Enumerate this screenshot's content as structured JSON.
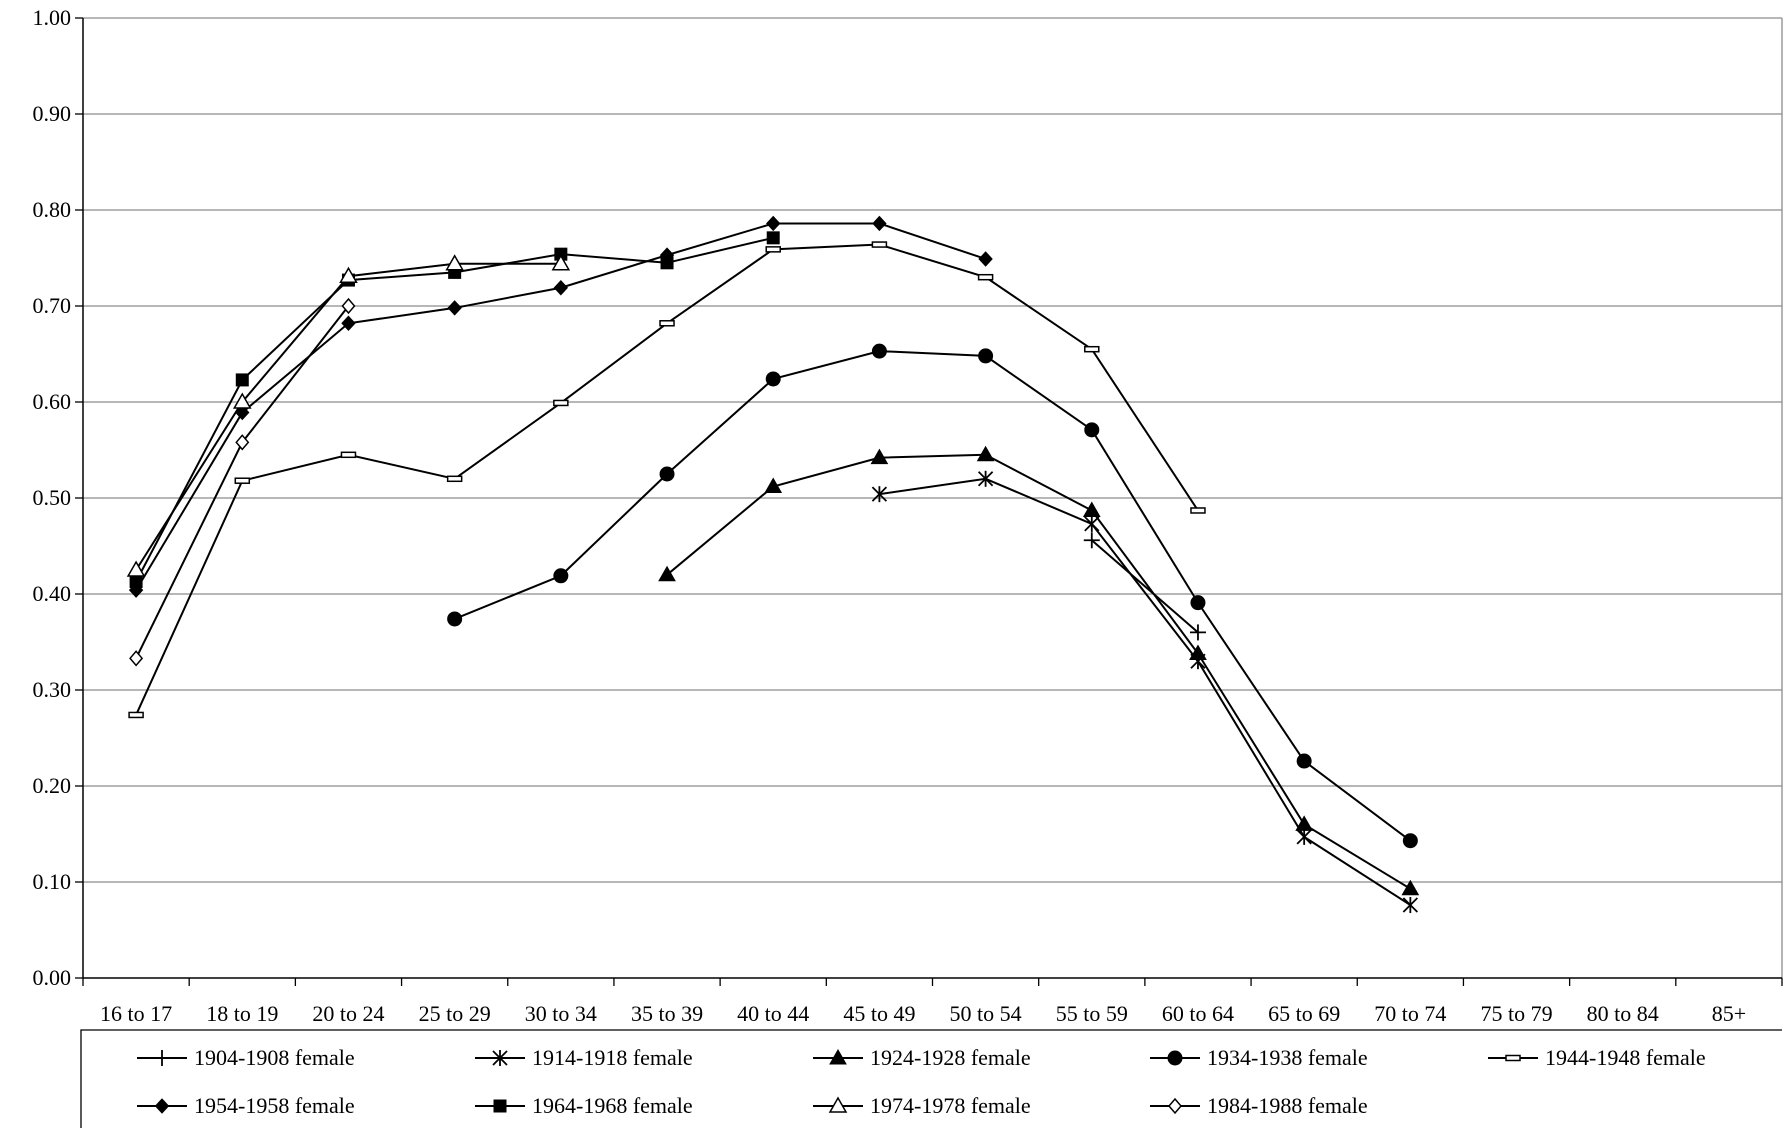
{
  "chart_data": {
    "type": "line",
    "title": "",
    "xlabel": "",
    "ylabel": "",
    "ylim": [
      0,
      1
    ],
    "yticks": [
      "0.00",
      "0.10",
      "0.20",
      "0.30",
      "0.40",
      "0.50",
      "0.60",
      "0.70",
      "0.80",
      "0.90",
      "1.00"
    ],
    "categories": [
      "16 to 17",
      "18 to 19",
      "20 to 24",
      "25 to 29",
      "30 to 34",
      "35 to 39",
      "40 to 44",
      "45 to 49",
      "50 to 54",
      "55 to 59",
      "60 to 64",
      "65 to 69",
      "70 to 74",
      "75 to 79",
      "80 to 84",
      "85+"
    ],
    "grid": "horizontal",
    "legend_position": "bottom",
    "series": [
      {
        "name": "1904-1908 female",
        "marker": "plus",
        "values": [
          null,
          null,
          null,
          null,
          null,
          null,
          null,
          null,
          null,
          0.456,
          0.36,
          null,
          null,
          null,
          null,
          null
        ]
      },
      {
        "name": "1914-1918 female",
        "marker": "star",
        "values": [
          null,
          null,
          null,
          null,
          null,
          null,
          null,
          0.504,
          0.52,
          0.473,
          0.33,
          0.147,
          0.076,
          null,
          null,
          null
        ]
      },
      {
        "name": "1924-1928 female",
        "marker": "triangle-filled",
        "values": [
          null,
          null,
          null,
          null,
          null,
          0.42,
          0.512,
          0.542,
          0.545,
          0.487,
          0.338,
          0.16,
          0.093,
          null,
          null,
          null
        ]
      },
      {
        "name": "1934-1938 female",
        "marker": "circle-filled",
        "values": [
          null,
          null,
          null,
          0.374,
          0.419,
          0.525,
          0.624,
          0.653,
          0.648,
          0.571,
          0.391,
          0.226,
          0.143,
          null,
          null,
          null
        ]
      },
      {
        "name": "1944-1948 female",
        "marker": "dash",
        "values": [
          0.274,
          0.518,
          0.545,
          0.52,
          0.599,
          0.682,
          0.759,
          0.764,
          0.73,
          0.655,
          0.487,
          null,
          null,
          null,
          null,
          null
        ]
      },
      {
        "name": "1954-1958 female",
        "marker": "diamond-filled",
        "values": [
          0.404,
          0.589,
          0.682,
          0.698,
          0.719,
          0.753,
          0.786,
          0.786,
          0.749,
          null,
          null,
          null,
          null,
          null,
          null,
          null
        ]
      },
      {
        "name": "1964-1968 female",
        "marker": "square-filled",
        "values": [
          0.413,
          0.623,
          0.727,
          0.735,
          0.754,
          0.745,
          0.771,
          null,
          null,
          null,
          null,
          null,
          null,
          null,
          null,
          null
        ]
      },
      {
        "name": "1974-1978 female",
        "marker": "triangle-open",
        "values": [
          0.425,
          0.6,
          0.731,
          0.744,
          0.744,
          null,
          null,
          null,
          null,
          null,
          null,
          null,
          null,
          null,
          null,
          null
        ]
      },
      {
        "name": "1984-1988 female",
        "marker": "diamond-open",
        "values": [
          0.333,
          0.558,
          0.7,
          null,
          null,
          null,
          null,
          null,
          null,
          null,
          null,
          null,
          null,
          null,
          null,
          null
        ]
      }
    ]
  }
}
